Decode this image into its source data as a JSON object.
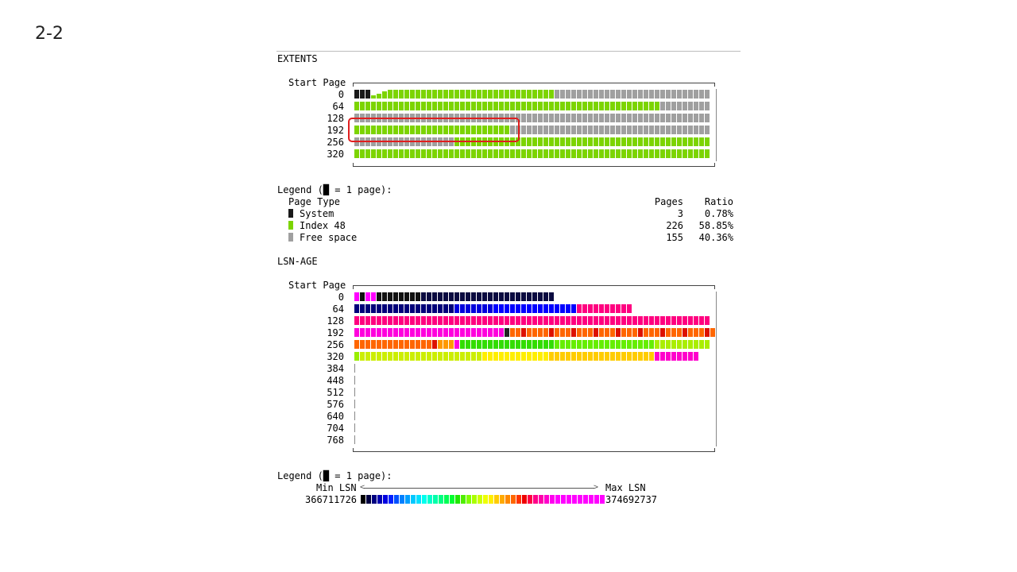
{
  "slide_label": "2-2",
  "extents": {
    "title": "EXTENTS",
    "start_page_header": "Start Page",
    "row_labels": [
      "0",
      "64",
      "128",
      "192",
      "256",
      "320"
    ],
    "legend_title": "Legend (█ = 1 page):",
    "table_header": {
      "type": "Page Type",
      "pages": "Pages",
      "ratio": "Ratio"
    },
    "legend_rows": [
      {
        "type_key": "system",
        "label": "System",
        "pages": "3",
        "ratio": "0.78%",
        "color": "#1a1a1a"
      },
      {
        "type_key": "index",
        "label": "Index 48",
        "pages": "226",
        "ratio": "58.85%",
        "color": "#7cd400"
      },
      {
        "type_key": "free",
        "label": "Free space",
        "pages": "155",
        "ratio": "40.36%",
        "color": "dotted"
      }
    ],
    "rows": [
      [
        [
          "S",
          3
        ],
        [
          "I",
          33
        ],
        [
          "F",
          28
        ]
      ],
      [
        [
          "I",
          55
        ],
        [
          "F",
          9
        ]
      ],
      [
        [
          "F",
          64
        ]
      ],
      [
        [
          "I",
          28
        ],
        [
          "F",
          36
        ]
      ],
      [
        [
          "F",
          18
        ],
        [
          "I",
          46
        ]
      ],
      [
        [
          "I",
          64
        ]
      ]
    ],
    "highlight_note": "rows 192 and 256 boxed in red"
  },
  "lsn_age": {
    "title": "LSN-AGE",
    "start_page_header": "Start Page",
    "row_labels": [
      "0",
      "64",
      "128",
      "192",
      "256",
      "320",
      "384",
      "448",
      "512",
      "576",
      "640",
      "704",
      "768"
    ],
    "legend_title": "Legend (█ = 1 page):",
    "min_label": "Min LSN",
    "max_label": "Max LSN",
    "min_value": "366711726",
    "max_value": "374692737",
    "rows": [
      [
        [
          "#ff00ff",
          1
        ],
        [
          "#111111",
          1
        ],
        [
          "#ff00ff",
          2
        ],
        [
          "#111111",
          8
        ],
        [
          "#0a0a40",
          24
        ]
      ],
      [
        [
          "#00007a",
          18
        ],
        [
          "#0000dd",
          7
        ],
        [
          "#0000ff",
          15
        ],
        [
          "#ff0080",
          10
        ]
      ],
      [
        [
          "#ff0080",
          64
        ]
      ],
      [
        [
          "#ff00dd",
          27
        ],
        [
          "#222222",
          1
        ],
        [
          "#ff6600",
          2
        ],
        [
          "#dd1100",
          1
        ],
        [
          "#ff6600",
          4
        ],
        [
          "#dd1100",
          1
        ],
        [
          "#ff6600",
          3
        ],
        [
          "#dd1100",
          1
        ],
        [
          "#ff6600",
          3
        ],
        [
          "#dd1100",
          1
        ],
        [
          "#ff6600",
          3
        ],
        [
          "#dd1100",
          1
        ],
        [
          "#ff6600",
          3
        ],
        [
          "#dd1100",
          1
        ],
        [
          "#ff6600",
          3
        ],
        [
          "#dd1100",
          1
        ],
        [
          "#ff6600",
          3
        ],
        [
          "#dd1100",
          1
        ],
        [
          "#ff6600",
          3
        ],
        [
          "#dd1100",
          1
        ],
        [
          "#ff6600",
          1
        ]
      ],
      [
        [
          "#ff6600",
          14
        ],
        [
          "#dd1100",
          1
        ],
        [
          "#ff9900",
          3
        ],
        [
          "#ff00dd",
          1
        ],
        [
          "#33dd00",
          17
        ],
        [
          "#66ee00",
          18
        ],
        [
          "#aaee00",
          10
        ]
      ],
      [
        [
          "#99ee00",
          1
        ],
        [
          "#ccee00",
          22
        ],
        [
          "#ffee00",
          12
        ],
        [
          "#ffcc00",
          19
        ],
        [
          "#ff00cc",
          8
        ]
      ],
      [],
      [],
      [],
      [],
      [],
      [],
      []
    ],
    "gradient": [
      "#000000",
      "#000040",
      "#000080",
      "#0000b0",
      "#0000e0",
      "#0020ff",
      "#0050ff",
      "#0080ff",
      "#00a0ff",
      "#00c8ff",
      "#00e0ff",
      "#00ffee",
      "#00ffcc",
      "#00ffaa",
      "#00ff80",
      "#00ff55",
      "#00ff30",
      "#20e800",
      "#50ee00",
      "#80ff00",
      "#aaff00",
      "#ccff00",
      "#eeff00",
      "#ffee00",
      "#ffcc00",
      "#ffaa00",
      "#ff8800",
      "#ff6600",
      "#ff3300",
      "#ee0000",
      "#ff0044",
      "#ff0088",
      "#ff00aa",
      "#ff00cc",
      "#ff00ee",
      "#ff00ff",
      "#ff00ff",
      "#ff00ff",
      "#ff00ff",
      "#ff00ff",
      "#ff00ff",
      "#ff00ff",
      "#ff00ff",
      "#ff00ff"
    ]
  }
}
